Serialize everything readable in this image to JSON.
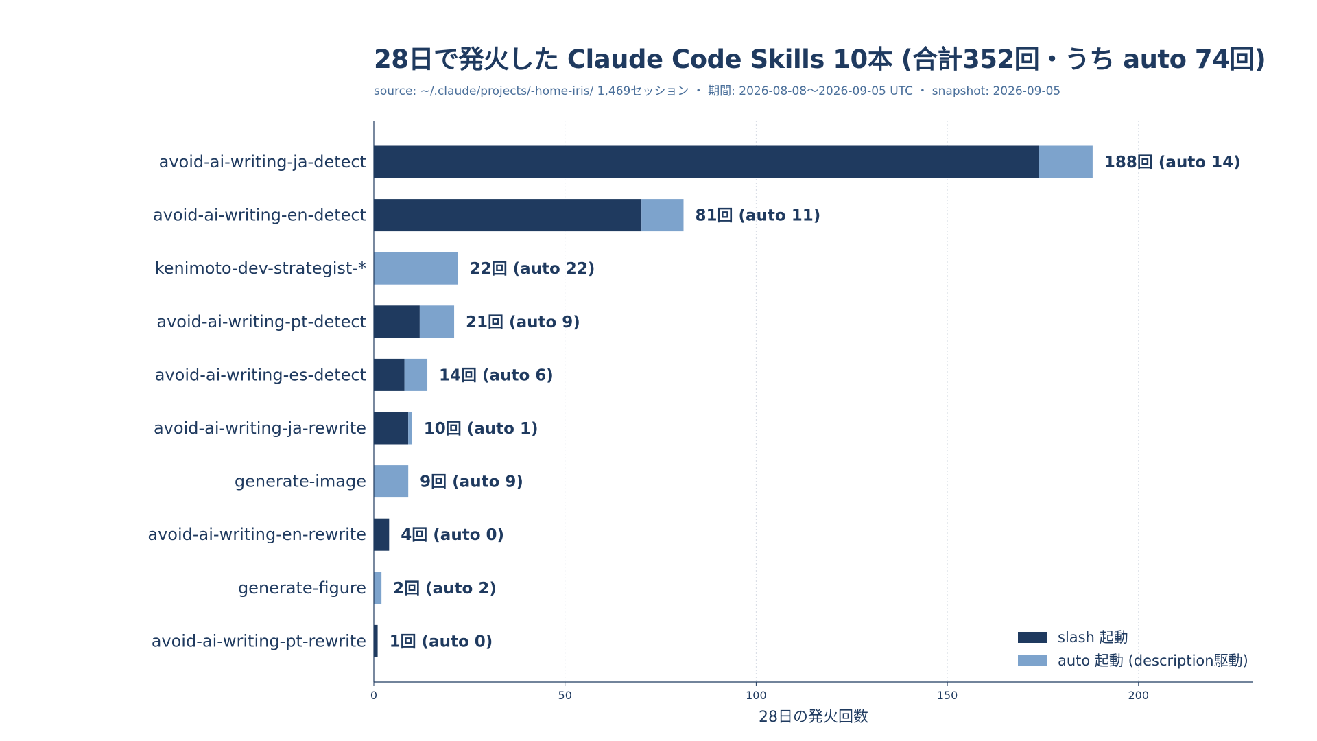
{
  "chart_data": {
    "type": "bar",
    "orientation": "horizontal",
    "stacked": true,
    "title": "28日で発火した Claude Code Skills 10本 (合計352回・うち auto 74回)",
    "subtitle": "source: ~/.claude/projects/-home-iris/ 1,469セッション ・ 期間: 2026-08-08〜2026-09-05 UTC ・ snapshot: 2026-09-05",
    "xlabel": "28日の発火回数",
    "ylabel": "",
    "xlim": [
      0,
      230
    ],
    "xticks": [
      0,
      50,
      100,
      150,
      200
    ],
    "grid": "vertical dotted",
    "legend_position": "bottom-right",
    "categories": [
      "avoid-ai-writing-ja-detect",
      "avoid-ai-writing-en-detect",
      "kenimoto-dev-strategist-*",
      "avoid-ai-writing-pt-detect",
      "avoid-ai-writing-es-detect",
      "avoid-ai-writing-ja-rewrite",
      "generate-image",
      "avoid-ai-writing-en-rewrite",
      "generate-figure",
      "avoid-ai-writing-pt-rewrite"
    ],
    "series": [
      {
        "name": "slash 起動",
        "color": "#1f3a5f",
        "values": [
          174,
          70,
          0,
          12,
          8,
          9,
          0,
          4,
          0,
          1
        ]
      },
      {
        "name": "auto 起動 (description駆動)",
        "color": "#7da3cc",
        "values": [
          14,
          11,
          22,
          9,
          6,
          1,
          9,
          0,
          2,
          0
        ]
      }
    ],
    "data_labels": [
      "188回 (auto 14)",
      "81回 (auto 11)",
      "22回 (auto 22)",
      "21回 (auto 9)",
      "14回 (auto 6)",
      "10回 (auto 1)",
      "9回 (auto 9)",
      "4回 (auto 0)",
      "2回 (auto 2)",
      "1回 (auto 0)"
    ]
  }
}
